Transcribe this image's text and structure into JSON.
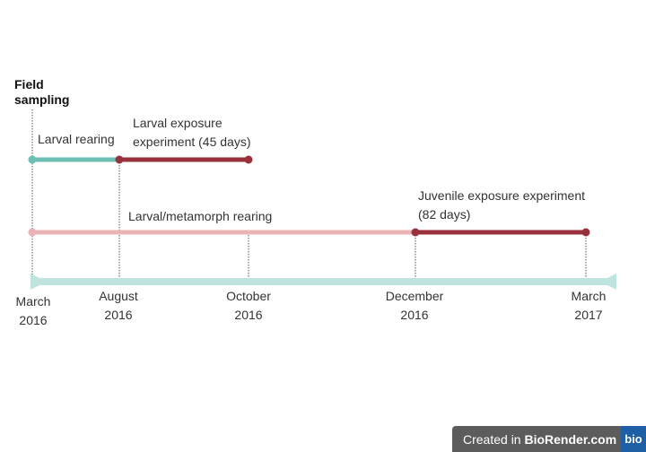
{
  "header": {
    "field_sampling_line1": "Field",
    "field_sampling_line2": "sampling"
  },
  "timeline": {
    "ticks": [
      {
        "line1": "March",
        "line2": "2016"
      },
      {
        "line1": "August",
        "line2": "2016"
      },
      {
        "line1": "October",
        "line2": "2016"
      },
      {
        "line1": "December",
        "line2": "2016"
      },
      {
        "line1": "March",
        "line2": "2017"
      }
    ]
  },
  "phases": {
    "larval_rearing": "Larval rearing",
    "larval_exposure_line1": "Larval exposure",
    "larval_exposure_line2": "experiment (45 days)",
    "metamorph_rearing": "Larval/metamorph rearing",
    "juvenile_exposure_line1": "Juvenile exposure experiment",
    "juvenile_exposure_line2": "(82 days)"
  },
  "colors": {
    "teal": "#6dbfb3",
    "dark_red": "#98313c",
    "pink": "#eab4b6",
    "axis": "#bfe3de",
    "guide": "#555555"
  },
  "footer": {
    "created_in": "Created in ",
    "brand": "BioRender.com",
    "logo": "bio"
  }
}
